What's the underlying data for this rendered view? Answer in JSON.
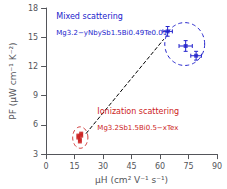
{
  "chart_data": {
    "type": "scatter",
    "xlabel": "μH (cm² V⁻¹ s⁻¹)",
    "ylabel": "PF (μW cm⁻¹ K⁻²)",
    "xlim": [
      0,
      90
    ],
    "ylim": [
      3,
      18
    ],
    "xticks": [
      0,
      15,
      30,
      45,
      60,
      75,
      90
    ],
    "yticks": [
      3,
      6,
      9,
      12,
      15,
      18
    ],
    "grid": false,
    "series": [
      {
        "color": "#2222cc",
        "marker": "square",
        "x": [
          64.0,
          73.5,
          79.0
        ],
        "values": [
          15.6,
          14.1,
          13.1
        ],
        "xerr": [
          2.5,
          3.5,
          2.8
        ],
        "yerr": [
          0.5,
          0.55,
          0.45
        ],
        "ellipse": {
          "center": [
            73.0,
            14.3
          ],
          "radius_x": 10.5,
          "radius_y": 2.2
        },
        "line_style": "dashed",
        "annotations": [
          "Mixed scattering",
          "Mg3.2−yNbySb1.5Bi0.49Te0.01"
        ]
      },
      {
        "color": "#cc2222",
        "marker": "square",
        "x": [
          17.0,
          18.5,
          17.8
        ],
        "values": [
          4.8,
          5.0,
          4.4
        ],
        "xerr": [
          0.6,
          0.6,
          0.6
        ],
        "yerr": [
          0.25,
          0.25,
          0.25
        ],
        "ellipse": {
          "center": [
            18.0,
            4.7
          ],
          "radius_x": 4.0,
          "radius_y": 1.1
        },
        "line_style": "dashed",
        "annotations": [
          "Ionization scattering",
          "Mg3.2Sb1.5Bi0.5−xTex"
        ]
      }
    ],
    "reference_line": {
      "x": [
        21.0,
        62.0
      ],
      "y": [
        5.1,
        14.8
      ],
      "color": "black",
      "line_style": "dashed"
    }
  }
}
